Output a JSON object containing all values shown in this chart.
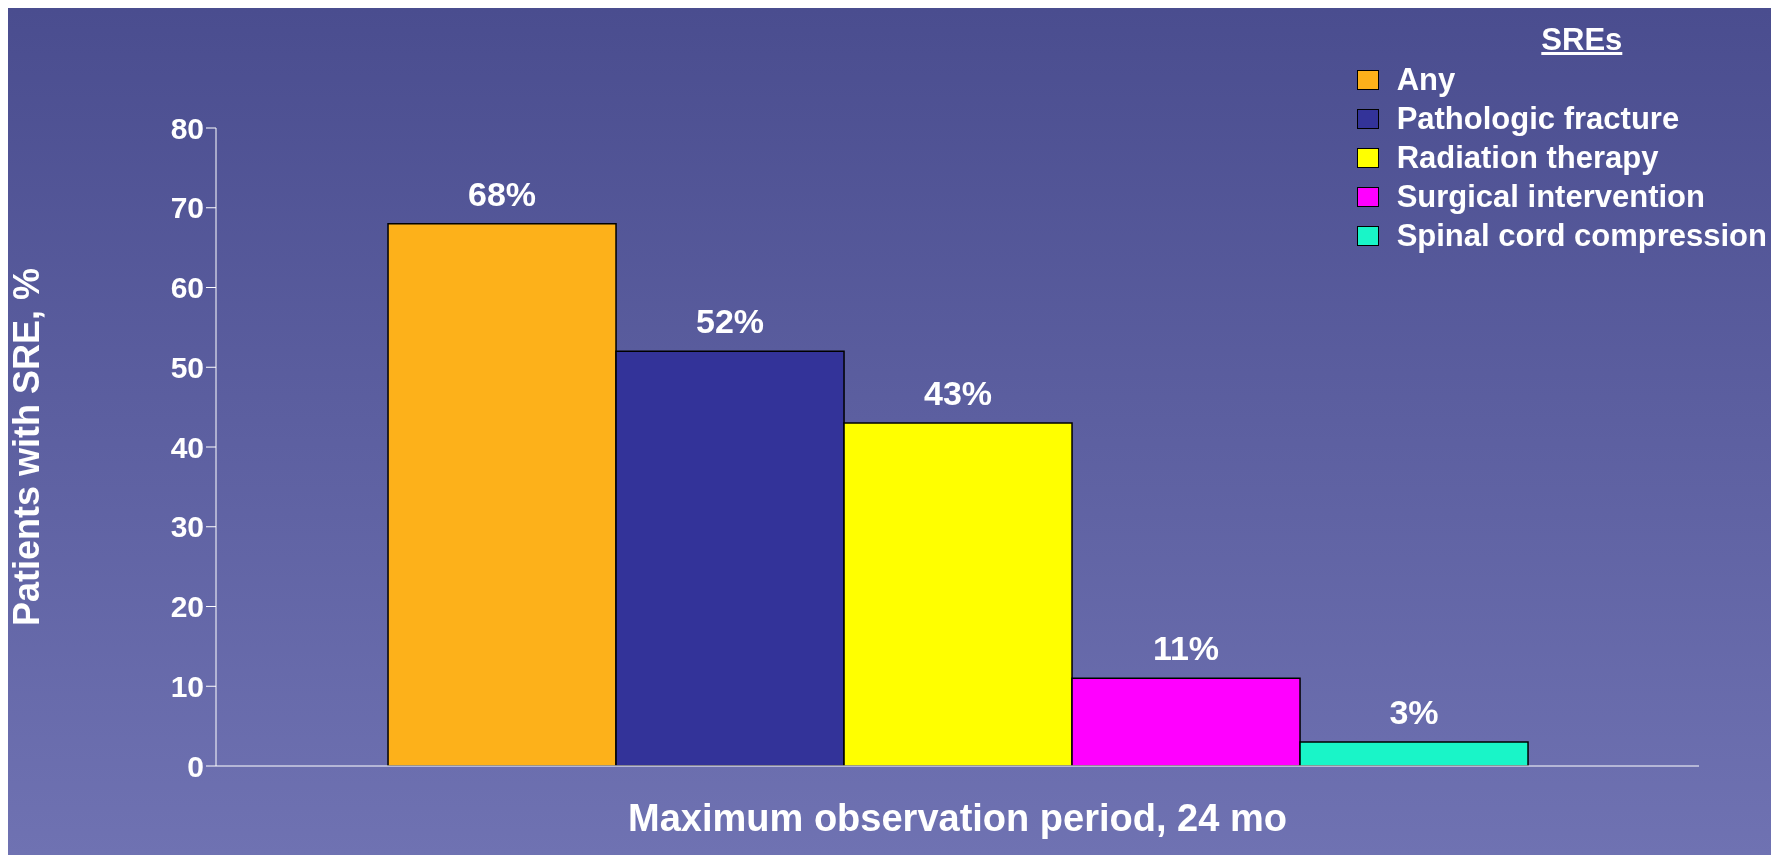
{
  "chart_data": {
    "type": "bar",
    "xlabel": "Maximum observation period, 24 mo",
    "ylabel": "Patients with SRE, %",
    "legend_title": "SREs",
    "categories": [
      null
    ],
    "series": [
      {
        "name": "Any",
        "color": "#fdb11a",
        "values": [
          68
        ],
        "value_labels": [
          "68%"
        ]
      },
      {
        "name": "Pathologic fracture",
        "color": "#333399",
        "values": [
          52
        ],
        "value_labels": [
          "52%"
        ]
      },
      {
        "name": "Radiation therapy",
        "color": "#ffff00",
        "values": [
          43
        ],
        "value_labels": [
          "43%"
        ]
      },
      {
        "name": "Surgical intervention",
        "color": "#ff00ff",
        "values": [
          11
        ],
        "value_labels": [
          "11%"
        ]
      },
      {
        "name": "Spinal cord compression",
        "color": "#19f5c8",
        "values": [
          3
        ],
        "value_labels": [
          "3%"
        ]
      }
    ],
    "ylim": [
      0,
      80
    ],
    "yticks": [
      0,
      10,
      20,
      30,
      40,
      50,
      60,
      70,
      80
    ],
    "grid": false,
    "legend": "top right"
  }
}
